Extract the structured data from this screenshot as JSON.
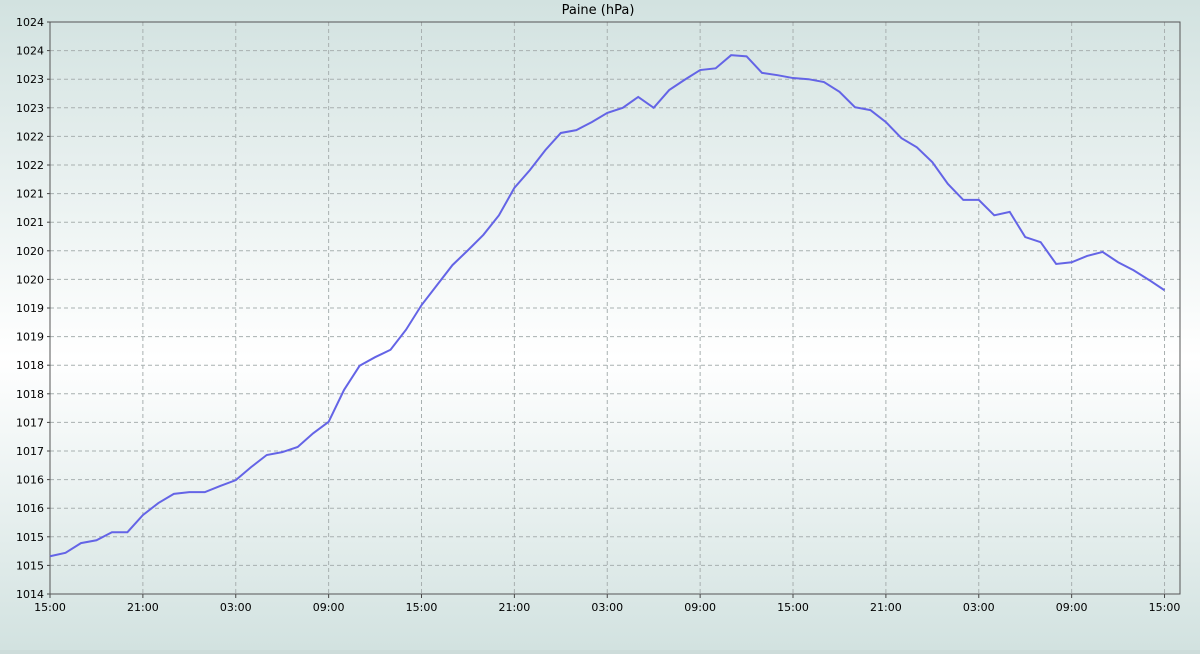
{
  "chart_data": {
    "type": "line",
    "title": "Paine (hPa)",
    "x": [
      0,
      1,
      2,
      3,
      4,
      5,
      6,
      7,
      8,
      9,
      10,
      11,
      12,
      13,
      14,
      15,
      16,
      17,
      18,
      19,
      20,
      21,
      22,
      23,
      24,
      25,
      26,
      27,
      28,
      29,
      30,
      31,
      32,
      33,
      34,
      35,
      36,
      37,
      38,
      39,
      40,
      41,
      42,
      43,
      44,
      45,
      46,
      47,
      48,
      49,
      50,
      51,
      52,
      53,
      54,
      55,
      56,
      57,
      58,
      59,
      60,
      61,
      62,
      63,
      64,
      65,
      66,
      67,
      68,
      69,
      70,
      71,
      72
    ],
    "series": [
      {
        "color": "#6464e6",
        "values": [
          1014.66,
          1014.72,
          1014.89,
          1014.94,
          1015.08,
          1015.08,
          1015.38,
          1015.59,
          1015.75,
          1015.78,
          1015.78,
          1015.89,
          1015.99,
          1016.22,
          1016.43,
          1016.48,
          1016.57,
          1016.81,
          1017.01,
          1017.57,
          1017.99,
          1018.14,
          1018.27,
          1018.62,
          1019.05,
          1019.4,
          1019.75,
          1020.01,
          1020.28,
          1020.62,
          1021.1,
          1021.41,
          1021.76,
          1022.06,
          1022.11,
          1022.25,
          1022.41,
          1022.5,
          1022.69,
          1022.5,
          1022.81,
          1022.99,
          1023.16,
          1023.19,
          1023.42,
          1023.4,
          1023.11,
          1023.07,
          1023.02,
          1023.0,
          1022.95,
          1022.78,
          1022.51,
          1022.46,
          1022.25,
          1021.97,
          1021.81,
          1021.55,
          1021.17,
          1020.89,
          1020.89,
          1020.62,
          1020.68,
          1020.24,
          1020.15,
          1019.77,
          1019.8,
          1019.91,
          1019.98,
          1019.8,
          1019.66,
          1019.49,
          1019.31
        ]
      }
    ],
    "xlim": [
      0,
      73
    ],
    "xticks": [
      {
        "value": 0,
        "label": "15:00"
      },
      {
        "value": 6,
        "label": "21:00"
      },
      {
        "value": 12,
        "label": "03:00"
      },
      {
        "value": 18,
        "label": "09:00"
      },
      {
        "value": 24,
        "label": "15:00"
      },
      {
        "value": 30,
        "label": "21:00"
      },
      {
        "value": 36,
        "label": "03:00"
      },
      {
        "value": 42,
        "label": "09:00"
      },
      {
        "value": 48,
        "label": "15:00"
      },
      {
        "value": 54,
        "label": "21:00"
      },
      {
        "value": 60,
        "label": "03:00"
      },
      {
        "value": 66,
        "label": "09:00"
      },
      {
        "value": 72,
        "label": "15:00"
      }
    ],
    "ylim": [
      1014,
      1024
    ],
    "yticks": [
      1014,
      {
        "value": 1014.5,
        "label": "1015"
      },
      1015,
      {
        "value": 1015.5,
        "label": "1016"
      },
      1016,
      {
        "value": 1016.5,
        "label": "1017"
      },
      1017,
      {
        "value": 1017.5,
        "label": "1018"
      },
      1018,
      {
        "value": 1018.5,
        "label": "1019"
      },
      1019,
      {
        "value": 1019.5,
        "label": "1020"
      },
      1020,
      {
        "value": 1020.5,
        "label": "1021"
      },
      1021,
      {
        "value": 1021.5,
        "label": "1022"
      },
      1022,
      {
        "value": 1022.5,
        "label": "1023"
      },
      1023,
      {
        "value": 1023.5,
        "label": "1024"
      },
      1024
    ],
    "grid": true
  }
}
